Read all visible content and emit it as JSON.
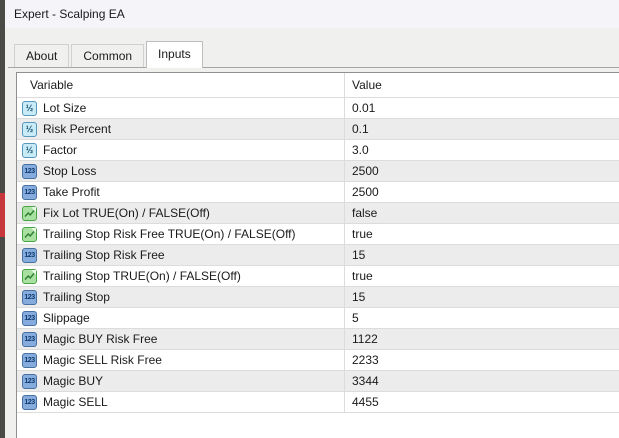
{
  "window": {
    "title": "Expert - Scalping EA"
  },
  "tabs": [
    {
      "label": "About",
      "active": false
    },
    {
      "label": "Common",
      "active": false
    },
    {
      "label": "Inputs",
      "active": true
    }
  ],
  "icons": {
    "double_glyph": "½",
    "int_glyph": "123",
    "bool_glyph": "chart-line"
  },
  "colors": {
    "double_icon_bg": "#c9ebf7",
    "int_icon_bg": "#85acdd",
    "bool_icon_bg": "#a7e0a0",
    "alt_row_bg": "#ececec",
    "edge_red": "#c7373c"
  },
  "table": {
    "columns": [
      "Variable",
      "Value"
    ],
    "rows": [
      {
        "icon": "double",
        "variable": "Lot Size",
        "value": "0.01"
      },
      {
        "icon": "double",
        "variable": "Risk Percent",
        "value": "0.1"
      },
      {
        "icon": "double",
        "variable": "Factor",
        "value": "3.0"
      },
      {
        "icon": "int",
        "variable": "Stop Loss",
        "value": "2500"
      },
      {
        "icon": "int",
        "variable": "Take Profit",
        "value": "2500"
      },
      {
        "icon": "bool",
        "variable": "Fix Lot TRUE(On) / FALSE(Off)",
        "value": "false"
      },
      {
        "icon": "bool",
        "variable": "Trailing Stop Risk Free TRUE(On) / FALSE(Off)",
        "value": "true"
      },
      {
        "icon": "int",
        "variable": "Trailing Stop Risk Free",
        "value": "15"
      },
      {
        "icon": "bool",
        "variable": "Trailing Stop TRUE(On) / FALSE(Off)",
        "value": "true"
      },
      {
        "icon": "int",
        "variable": "Trailing Stop",
        "value": "15"
      },
      {
        "icon": "int",
        "variable": "Slippage",
        "value": "5"
      },
      {
        "icon": "int",
        "variable": "Magic BUY Risk Free",
        "value": "1122"
      },
      {
        "icon": "int",
        "variable": "Magic SELL Risk Free",
        "value": "2233"
      },
      {
        "icon": "int",
        "variable": "Magic BUY",
        "value": "3344"
      },
      {
        "icon": "int",
        "variable": "Magic SELL",
        "value": "4455"
      }
    ]
  }
}
